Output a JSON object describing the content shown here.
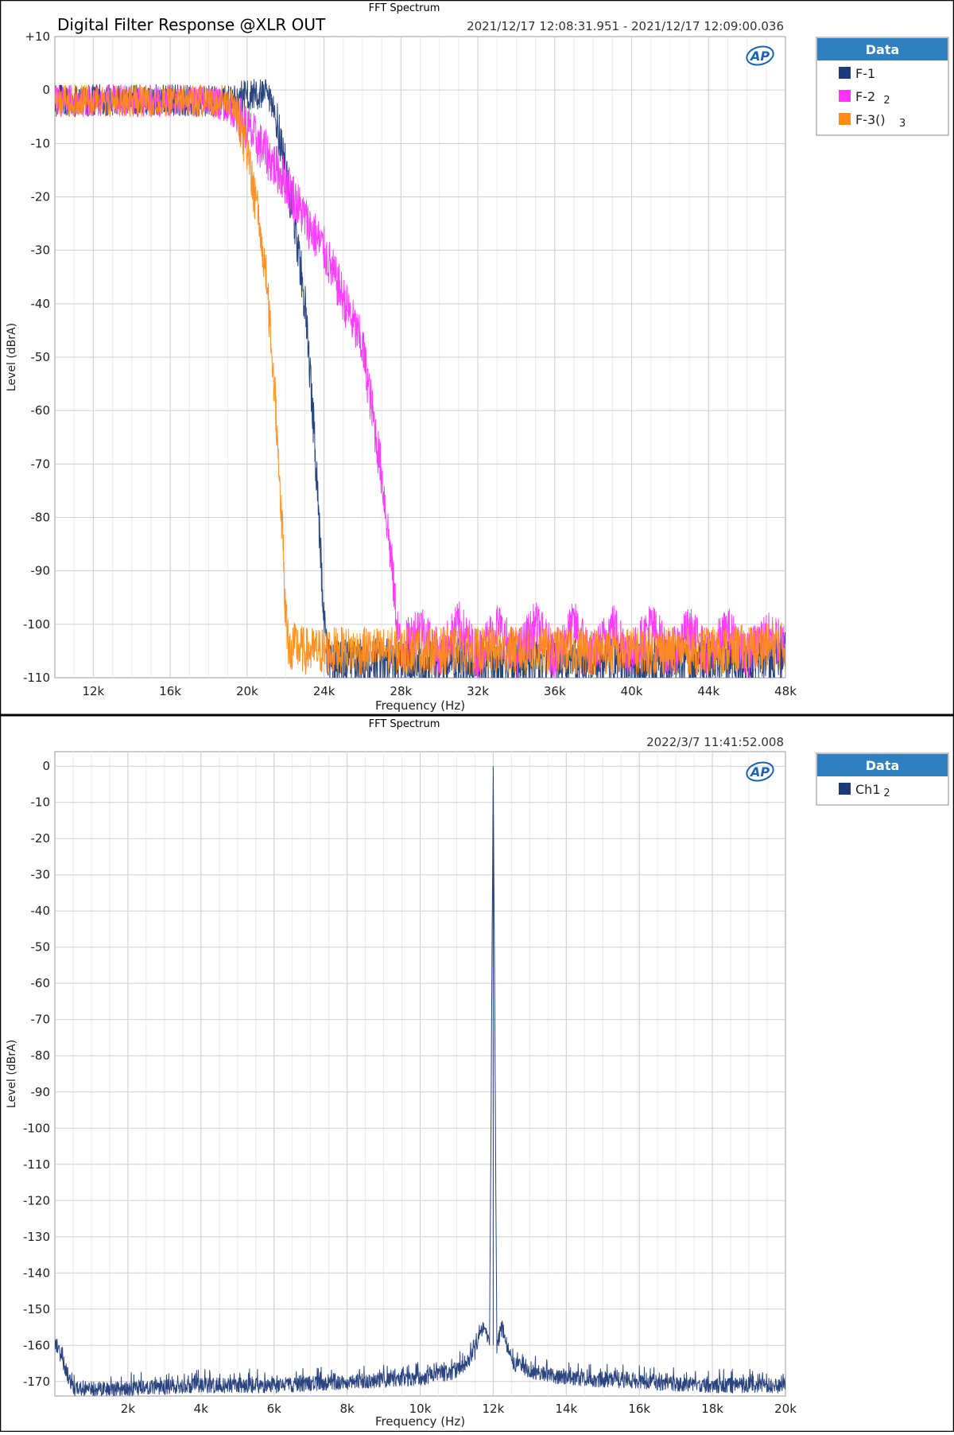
{
  "chart_data": [
    {
      "type": "line",
      "window_title": "FFT Spectrum",
      "title": "Digital Filter Response @XLR OUT",
      "timestamp": "2021/12/17 12:08:31.951 - 2021/12/17 12:09:00.036",
      "logo": "AP",
      "xlabel": "Frequency (Hz)",
      "ylabel": "Level (dBrA)",
      "xlim": [
        10000,
        48000
      ],
      "ylim": [
        -110,
        10
      ],
      "x_ticks": [
        12000,
        16000,
        20000,
        24000,
        28000,
        32000,
        36000,
        40000,
        44000,
        48000
      ],
      "x_tick_labels": [
        "12k",
        "16k",
        "20k",
        "24k",
        "28k",
        "32k",
        "36k",
        "40k",
        "44k",
        "48k"
      ],
      "y_ticks": [
        10,
        0,
        -10,
        -20,
        -30,
        -40,
        -50,
        -60,
        -70,
        -80,
        -90,
        -100,
        -110
      ],
      "y_tick_labels": [
        "+10",
        "0",
        "-10",
        "-20",
        "-30",
        "-40",
        "-50",
        "-60",
        "-70",
        "-80",
        "-90",
        "-100",
        "-110"
      ],
      "grid": true,
      "legend": {
        "title": "Data",
        "placement": "right",
        "entries": [
          {
            "name": "F-1",
            "suffix": "",
            "color": "#1f3a78"
          },
          {
            "name": "F-2",
            "suffix": "2",
            "color": "#ff33ff"
          },
          {
            "name": "F-3()",
            "suffix": "3",
            "color": "#ff8c1a"
          }
        ]
      },
      "series": [
        {
          "name": "F-1",
          "color": "#1f3a78",
          "x": [
            10000,
            12000,
            16000,
            19000,
            20000,
            21000,
            21500,
            22000,
            22500,
            23000,
            23200,
            23500,
            23800,
            24000,
            24200,
            25000,
            28000,
            32000,
            36000,
            40000,
            44000,
            48000
          ],
          "y": [
            -2,
            -2,
            -2,
            -2,
            -1,
            -1,
            -5,
            -15,
            -25,
            -40,
            -50,
            -65,
            -85,
            -100,
            -107,
            -107,
            -107,
            -107,
            -107,
            -107,
            -107,
            -106
          ]
        },
        {
          "name": "F-2",
          "color": "#ff33ff",
          "x": [
            10000,
            12000,
            16000,
            18000,
            19000,
            20000,
            21000,
            22000,
            23000,
            24000,
            25000,
            26000,
            26500,
            27000,
            27500,
            27800,
            28000,
            29000,
            30000,
            31000,
            32000,
            33000,
            34000,
            35000,
            36000,
            37000,
            38000,
            39000,
            40000,
            41000,
            42000,
            43000,
            44000,
            45000,
            46000,
            47000,
            48000
          ],
          "y": [
            -2,
            -2,
            -2,
            -2,
            -3,
            -7,
            -12,
            -17,
            -24,
            -30,
            -39,
            -48,
            -60,
            -72,
            -88,
            -100,
            -105,
            -100,
            -106,
            -100,
            -106,
            -100,
            -106,
            -100,
            -106,
            -100,
            -106,
            -100,
            -106,
            -100,
            -106,
            -101,
            -106,
            -101,
            -106,
            -102,
            -104
          ]
        },
        {
          "name": "F-3()",
          "color": "#ff8c1a",
          "x": [
            10000,
            12000,
            16000,
            18000,
            19000,
            19500,
            20000,
            20500,
            21000,
            21500,
            21800,
            22000,
            22200,
            22500,
            23000,
            24000,
            28000,
            32000,
            36000,
            40000,
            44000,
            48000
          ],
          "y": [
            -2,
            -2,
            -2,
            -2,
            -2,
            -4,
            -12,
            -22,
            -35,
            -60,
            -80,
            -98,
            -105,
            -104,
            -105,
            -105,
            -105,
            -105,
            -105,
            -105,
            -105,
            -104
          ]
        }
      ]
    },
    {
      "type": "line",
      "window_title": "FFT Spectrum",
      "title": "",
      "timestamp": "2022/3/7 11:41:52.008",
      "logo": "AP",
      "xlabel": "Frequency (Hz)",
      "ylabel": "Level (dBrA)",
      "xlim": [
        0,
        20000
      ],
      "ylim": [
        -174,
        4
      ],
      "x_ticks": [
        2000,
        4000,
        6000,
        8000,
        10000,
        12000,
        14000,
        16000,
        18000,
        20000
      ],
      "x_tick_labels": [
        "2k",
        "4k",
        "6k",
        "8k",
        "10k",
        "12k",
        "14k",
        "16k",
        "18k",
        "20k"
      ],
      "y_ticks": [
        0,
        -10,
        -20,
        -30,
        -40,
        -50,
        -60,
        -70,
        -80,
        -90,
        -100,
        -110,
        -120,
        -130,
        -140,
        -150,
        -160,
        -170
      ],
      "y_tick_labels": [
        "0",
        "-10",
        "-20",
        "-30",
        "-40",
        "-50",
        "-60",
        "-70",
        "-80",
        "-90",
        "-100",
        "-110",
        "-120",
        "-130",
        "-140",
        "-150",
        "-160",
        "-170"
      ],
      "grid": true,
      "legend": {
        "title": "Data",
        "placement": "right",
        "entries": [
          {
            "name": "Ch1",
            "suffix": "2",
            "color": "#1f3a78"
          }
        ]
      },
      "series": [
        {
          "name": "Ch1",
          "color": "#1f3a78",
          "x": [
            20,
            500,
            2000,
            4000,
            6000,
            8000,
            10000,
            11000,
            11500,
            11750,
            11900,
            12000,
            12100,
            12250,
            12500,
            13000,
            14000,
            16000,
            18000,
            20000
          ],
          "y": [
            -157,
            -170,
            -170,
            -169,
            -169,
            -168,
            -167,
            -165,
            -160,
            -152,
            -158,
            0,
            -158,
            -153,
            -163,
            -165,
            -167,
            -168,
            -169,
            -169
          ]
        }
      ]
    }
  ]
}
